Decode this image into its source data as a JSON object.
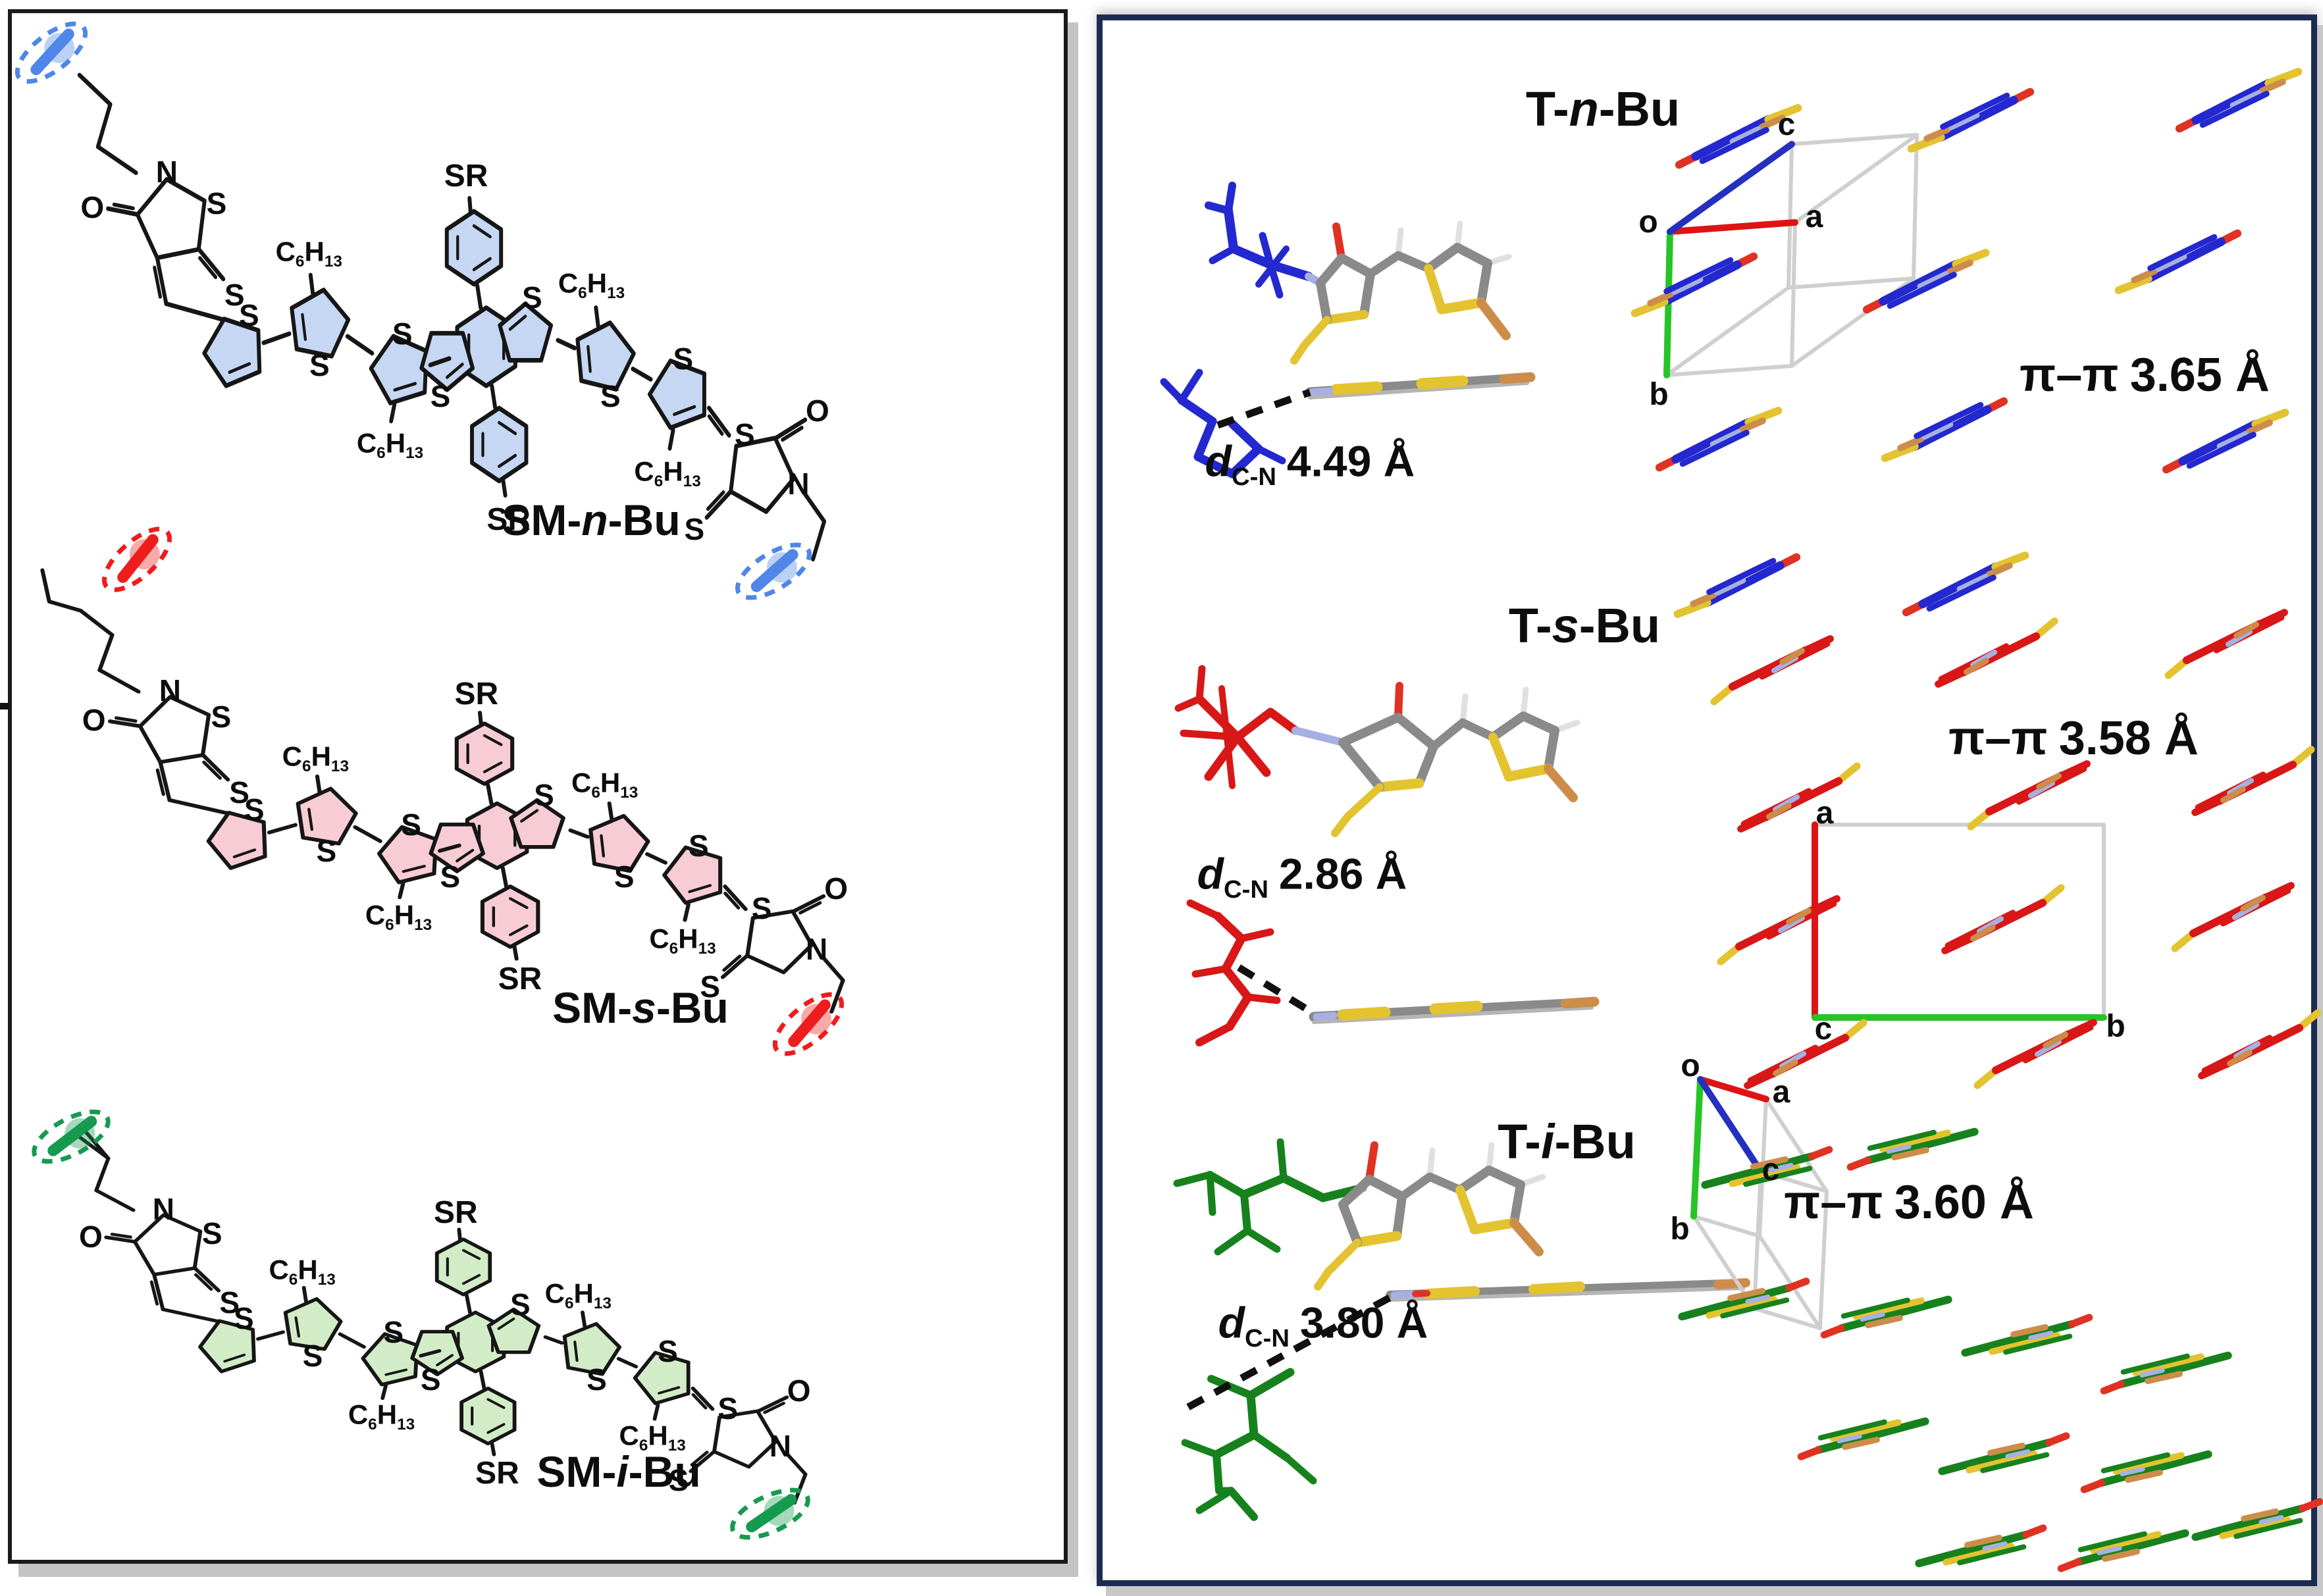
{
  "figure": {
    "left_panel": {
      "border_color": "#1a1a1a",
      "molecules": [
        {
          "id": "SM-n-Bu",
          "label_parts": [
            "SM-",
            "n",
            "-Bu"
          ],
          "ring_fill": "#c5d7f2",
          "accent": "#4f86e8"
        },
        {
          "id": "SM-s-Bu",
          "label_parts": [
            "SM-",
            "s",
            "-Bu"
          ],
          "ring_fill": "#f8ccd5",
          "accent": "#ee1c1c"
        },
        {
          "id": "SM-i-Bu",
          "label_parts": [
            "SM-",
            "i",
            "-Bu"
          ],
          "ring_fill": "#d2ecc8",
          "accent": "#169a50"
        }
      ],
      "atom_labels": {
        "S": "S",
        "N": "N",
        "O": "O",
        "SR": "SR"
      },
      "hexyl_parts": [
        "C",
        "6",
        "H",
        "13"
      ]
    },
    "right_panel": {
      "border_color": "#1c2b52",
      "distance_symbol": "d",
      "distance_subscript": "C-N",
      "pipi_symbol": "π–π",
      "sections": [
        {
          "title_parts": [
            "T-",
            "n",
            "-Bu"
          ],
          "dcn_value": "4.49 Å",
          "pipi_value": "3.65 Å",
          "accent": "#2428cf",
          "axis_labels": {
            "o": "o",
            "a": "a",
            "b": "b",
            "c": "c"
          }
        },
        {
          "title_parts": [
            "T-",
            "s",
            "-Bu"
          ],
          "dcn_value": "2.86 Å",
          "pipi_value": "3.58 Å",
          "accent": "#d81717",
          "axis_labels": {
            "a": "a",
            "b": "b",
            "c": "c"
          }
        },
        {
          "title_parts": [
            "T-",
            "i",
            "-Bu"
          ],
          "dcn_value": "3.80 Å",
          "pipi_value": "3.60 Å",
          "accent": "#17821d",
          "axis_labels": {
            "o": "o",
            "a": "a",
            "b": "b",
            "c": "c"
          }
        }
      ]
    }
  }
}
